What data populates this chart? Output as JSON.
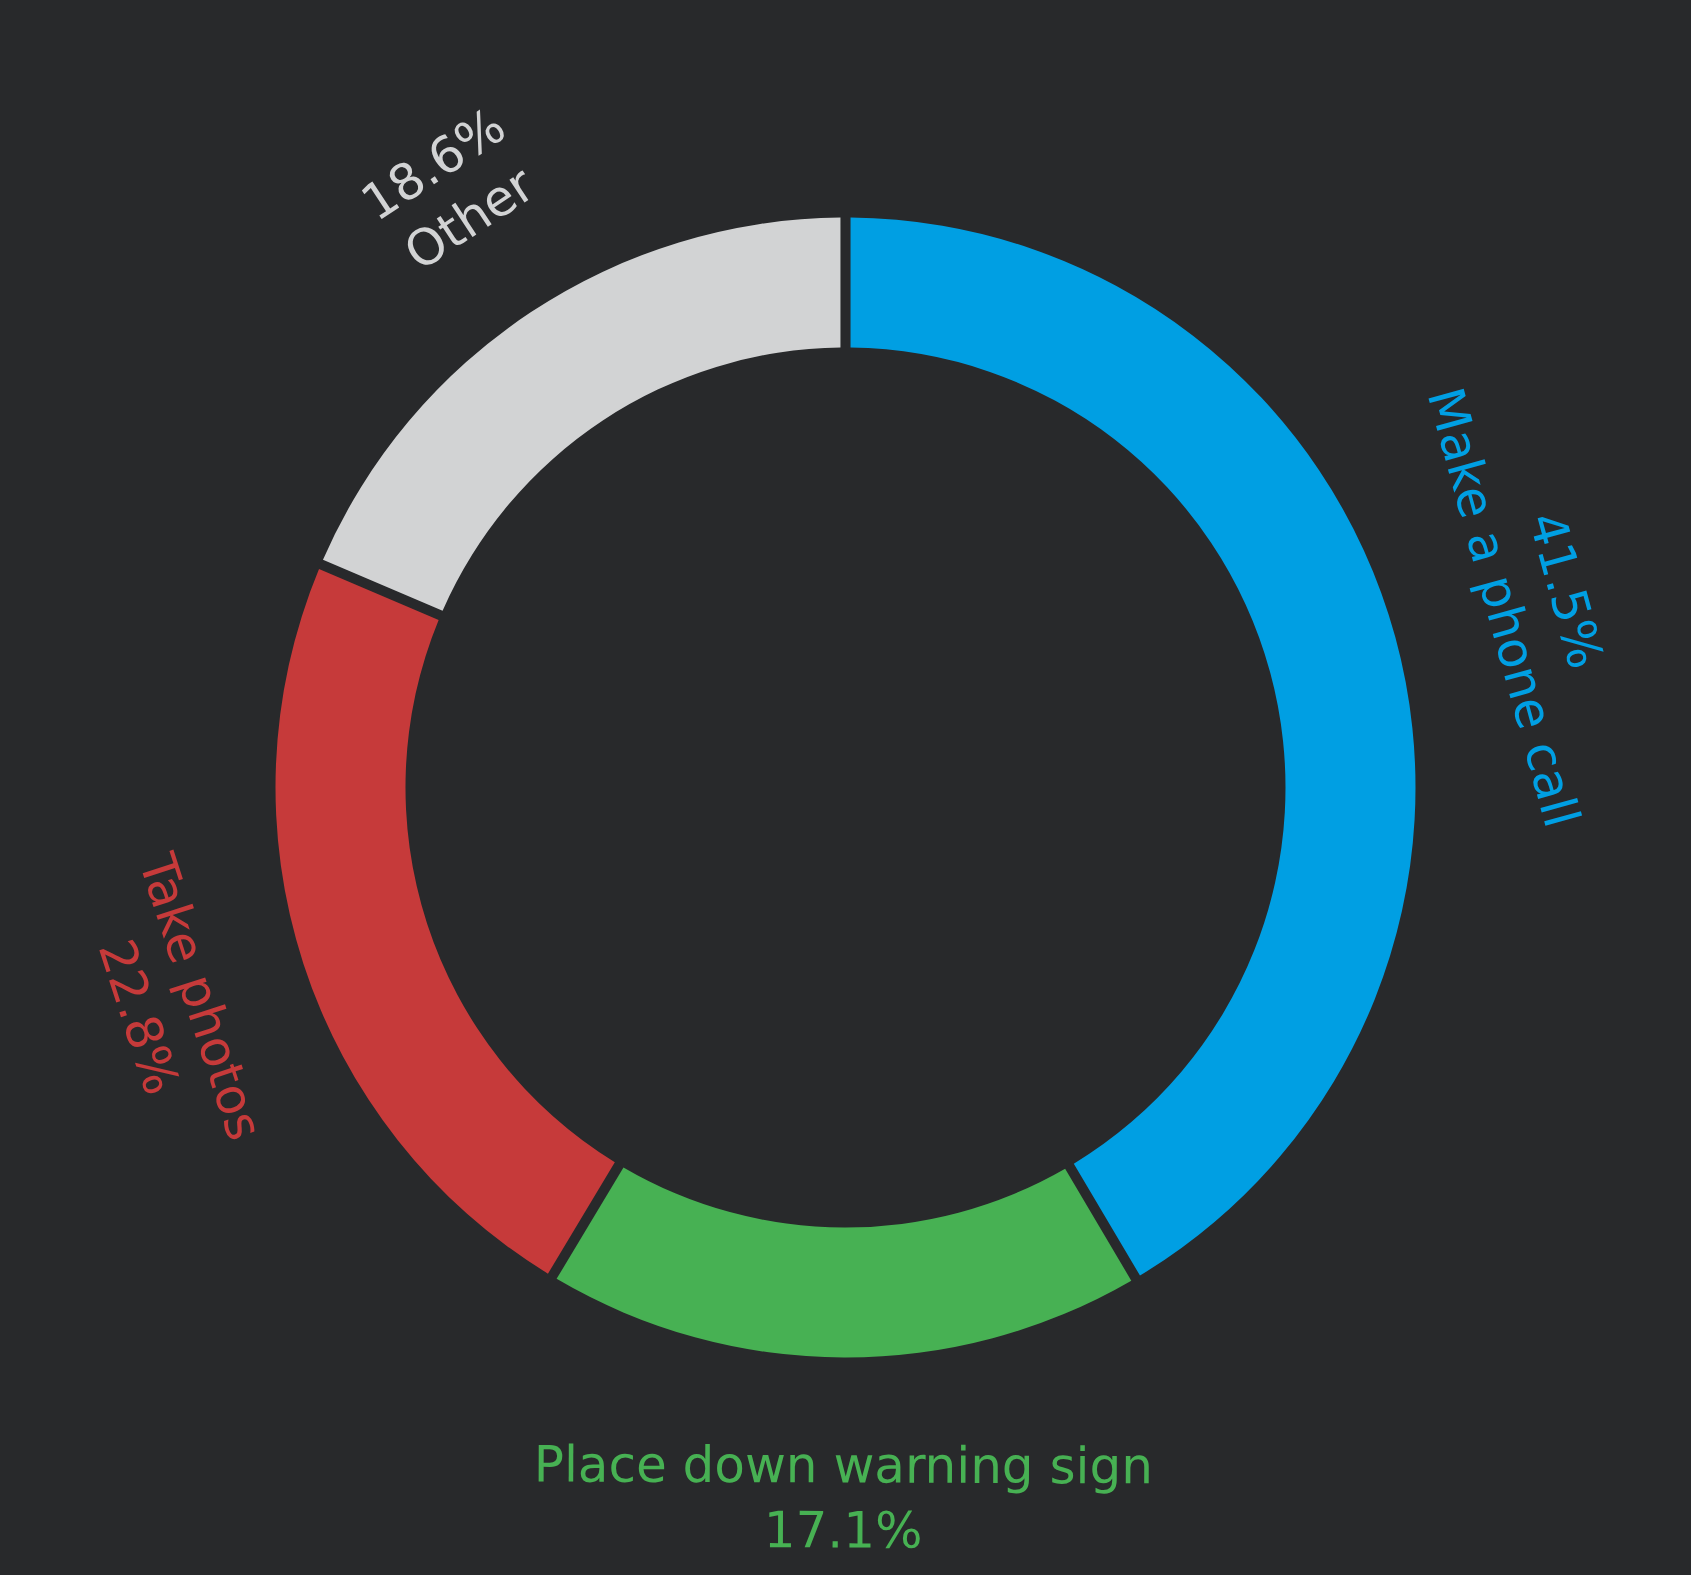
{
  "chart_data": {
    "type": "donut",
    "categories": [
      "Make a phone call",
      "Place down warning sign",
      "Take photos",
      "Other"
    ],
    "values": [
      41.5,
      17.1,
      22.8,
      18.6
    ],
    "colors": [
      "#009fe3",
      "#47b153",
      "#c63a3a",
      "#d2d3d4"
    ],
    "value_labels": [
      "41.5%",
      "17.1%",
      "22.8%",
      "18.6%"
    ]
  }
}
